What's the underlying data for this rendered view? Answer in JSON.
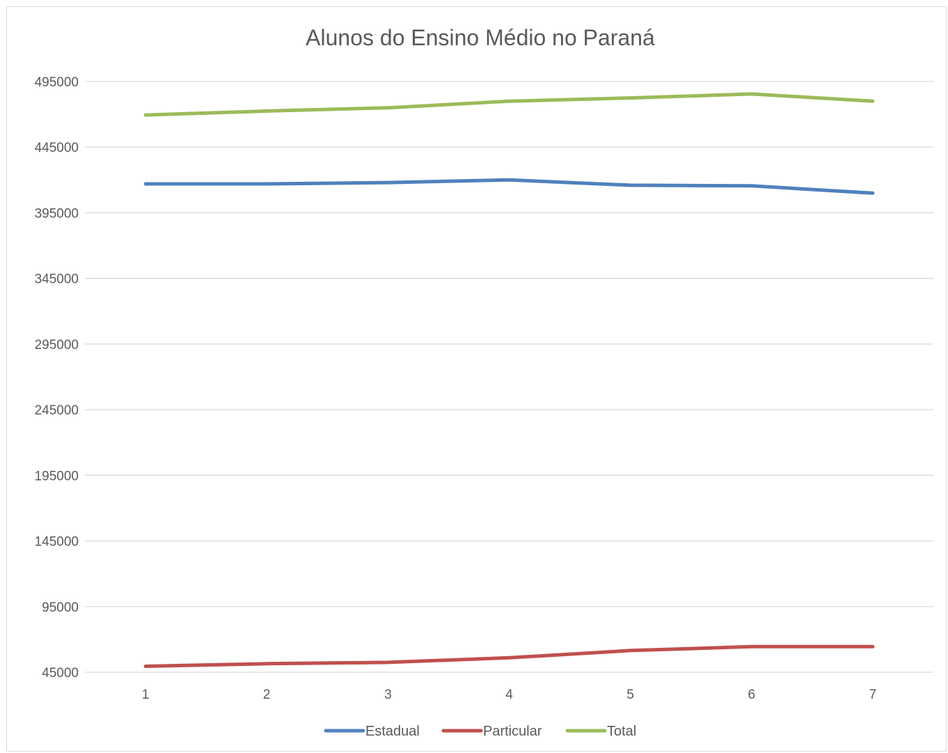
{
  "chart_data": {
    "type": "line",
    "title": "Alunos do Ensino Médio no Paraná",
    "xlabel": "",
    "ylabel": "",
    "categories": [
      "1",
      "2",
      "3",
      "4",
      "5",
      "6",
      "7"
    ],
    "yticks": [
      "45000",
      "95000",
      "145000",
      "195000",
      "245000",
      "295000",
      "345000",
      "395000",
      "445000",
      "495000"
    ],
    "ylim": [
      45000,
      495000
    ],
    "grid": true,
    "legend_position": "bottom",
    "series": [
      {
        "name": "Estadual",
        "color": "#4f81bd",
        "values": [
          417000,
          417000,
          418000,
          420000,
          416000,
          415500,
          410000
        ]
      },
      {
        "name": "Particular",
        "color": "#c0504d",
        "values": [
          49500,
          51500,
          52500,
          56000,
          61500,
          64500,
          64500
        ]
      },
      {
        "name": "Total",
        "color": "#9bbb59",
        "values": [
          469500,
          472500,
          475000,
          480000,
          482500,
          485500,
          480000
        ]
      }
    ]
  }
}
